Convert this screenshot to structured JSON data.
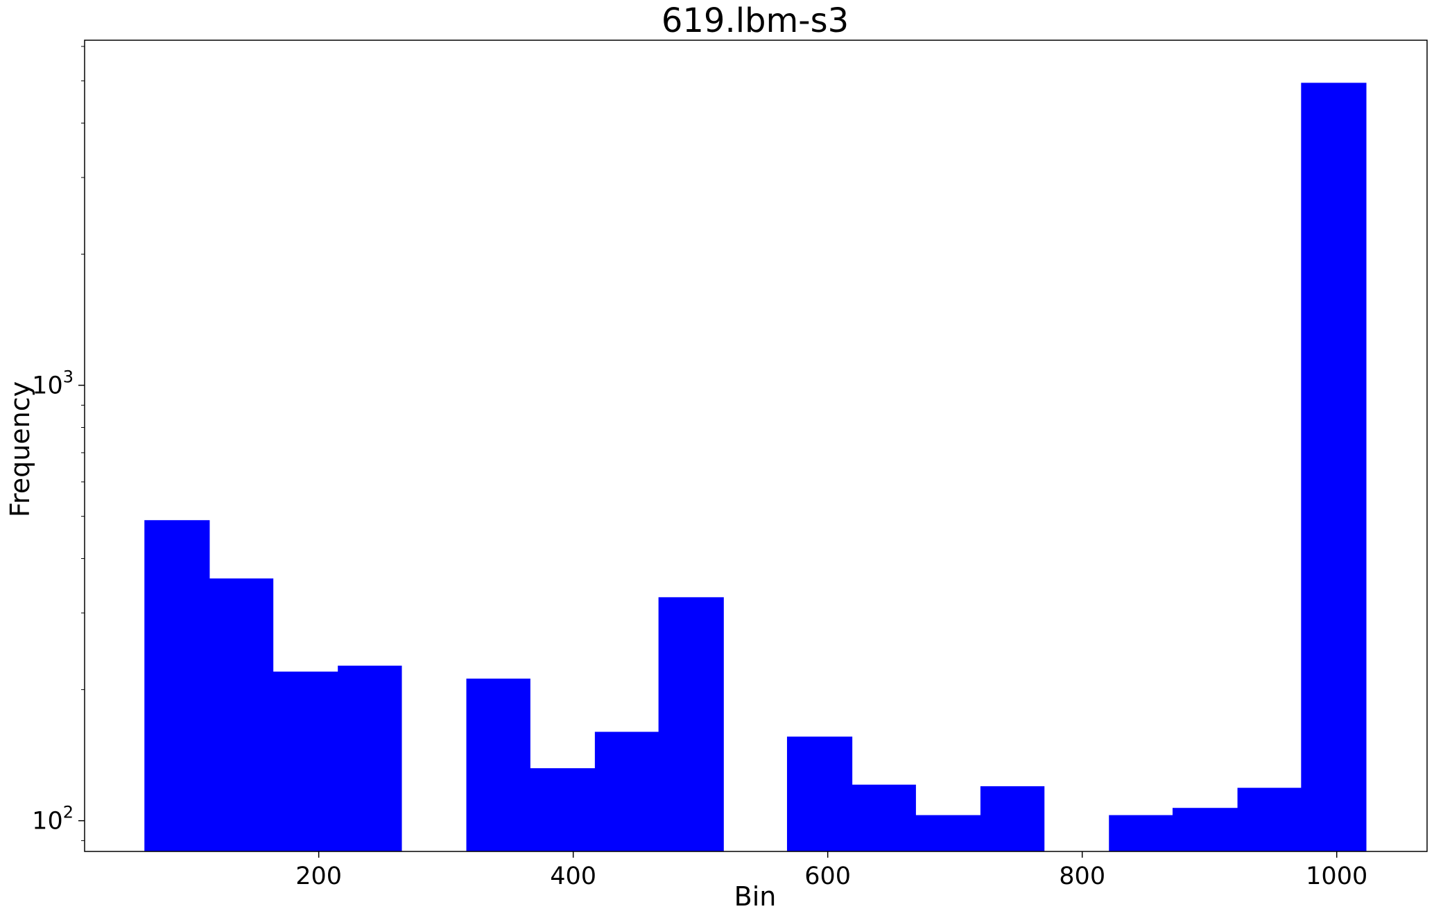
{
  "chart_data": {
    "type": "bar",
    "title": "619.lbm-s3",
    "xlabel": "Bin",
    "ylabel": "Frequency",
    "y_scale": "log",
    "grid": false,
    "legend": "none",
    "bar_color": "#0000ff",
    "xlim": [
      16,
      1071
    ],
    "ylim": [
      85,
      6200
    ],
    "x_ticks": [
      200,
      400,
      600,
      800,
      1000
    ],
    "y_ticks": [
      {
        "value": 100,
        "base": "10",
        "exp": "2"
      },
      {
        "value": 1000,
        "base": "10",
        "exp": "3"
      }
    ],
    "bins": [
      {
        "x0": 63,
        "x1": 114,
        "value": 490
      },
      {
        "x0": 114,
        "x1": 164,
        "value": 360
      },
      {
        "x0": 164,
        "x1": 215,
        "value": 220
      },
      {
        "x0": 215,
        "x1": 265,
        "value": 227
      },
      {
        "x0": 265,
        "x1": 316,
        "value": 0
      },
      {
        "x0": 316,
        "x1": 366,
        "value": 212
      },
      {
        "x0": 366,
        "x1": 417,
        "value": 132
      },
      {
        "x0": 417,
        "x1": 467,
        "value": 160
      },
      {
        "x0": 467,
        "x1": 518,
        "value": 326
      },
      {
        "x0": 518,
        "x1": 568,
        "value": 0
      },
      {
        "x0": 568,
        "x1": 619,
        "value": 156
      },
      {
        "x0": 619,
        "x1": 669,
        "value": 121
      },
      {
        "x0": 669,
        "x1": 720,
        "value": 103
      },
      {
        "x0": 720,
        "x1": 770,
        "value": 120
      },
      {
        "x0": 770,
        "x1": 821,
        "value": 0
      },
      {
        "x0": 821,
        "x1": 871,
        "value": 103
      },
      {
        "x0": 871,
        "x1": 922,
        "value": 107
      },
      {
        "x0": 922,
        "x1": 972,
        "value": 119
      },
      {
        "x0": 972,
        "x1": 1023,
        "value": 4950
      }
    ]
  }
}
